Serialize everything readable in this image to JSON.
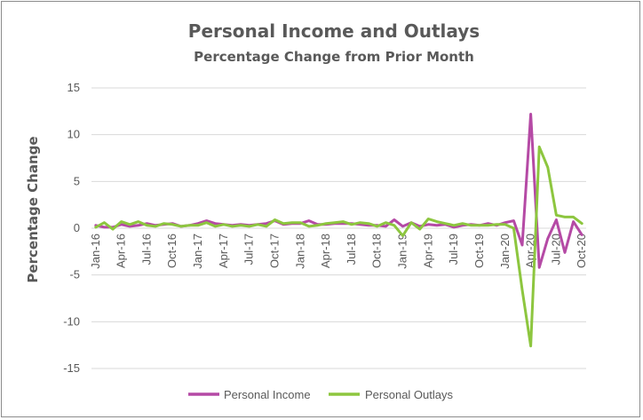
{
  "chart_data": {
    "type": "line",
    "title": "Personal Income and Outlays",
    "subtitle": "Percentage Change from Prior Month",
    "xlabel": "",
    "ylabel": "Percentage Change",
    "ylim": [
      -15,
      15
    ],
    "yticks": [
      15,
      10,
      5,
      0,
      -5,
      -10,
      -15
    ],
    "grid": true,
    "legend": "bottom",
    "x": [
      "Jan-16",
      "Feb-16",
      "Mar-16",
      "Apr-16",
      "May-16",
      "Jun-16",
      "Jul-16",
      "Aug-16",
      "Sep-16",
      "Oct-16",
      "Nov-16",
      "Dec-16",
      "Jan-17",
      "Feb-17",
      "Mar-17",
      "Apr-17",
      "May-17",
      "Jun-17",
      "Jul-17",
      "Aug-17",
      "Sep-17",
      "Oct-17",
      "Nov-17",
      "Dec-17",
      "Jan-18",
      "Feb-18",
      "Mar-18",
      "Apr-18",
      "May-18",
      "Jun-18",
      "Jul-18",
      "Aug-18",
      "Sep-18",
      "Oct-18",
      "Nov-18",
      "Dec-18",
      "Jan-19",
      "Feb-19",
      "Mar-19",
      "Apr-19",
      "May-19",
      "Jun-19",
      "Jul-19",
      "Aug-19",
      "Sep-19",
      "Oct-19",
      "Nov-19",
      "Dec-19",
      "Jan-20",
      "Feb-20",
      "Mar-20",
      "Apr-20",
      "May-20",
      "Jun-20",
      "Jul-20",
      "Aug-20",
      "Sep-20",
      "Oct-20"
    ],
    "xtick_labels": [
      "Jan-16",
      "Apr-16",
      "Jul-16",
      "Oct-16",
      "Jan-17",
      "Apr-17",
      "Jul-17",
      "Oct-17",
      "Jan-18",
      "Apr-18",
      "Jul-18",
      "Oct-18",
      "Jan-19",
      "Apr-19",
      "Jul-19",
      "Oct-19",
      "Jan-20",
      "Apr-20",
      "Jul-20",
      "Oct-20"
    ],
    "series": [
      {
        "name": "Personal Income",
        "color": "#b54aa5",
        "values": [
          0.3,
          0.1,
          0.1,
          0.4,
          0.2,
          0.3,
          0.5,
          0.3,
          0.4,
          0.5,
          0.2,
          0.3,
          0.5,
          0.8,
          0.5,
          0.4,
          0.3,
          0.4,
          0.3,
          0.4,
          0.5,
          0.8,
          0.4,
          0.5,
          0.5,
          0.8,
          0.4,
          0.4,
          0.5,
          0.5,
          0.5,
          0.4,
          0.3,
          0.3,
          0.2,
          0.9,
          0.2,
          0.6,
          0.2,
          0.4,
          0.3,
          0.4,
          0.1,
          0.3,
          0.4,
          0.3,
          0.5,
          0.3,
          0.6,
          0.8,
          -1.8,
          12.2,
          -4.2,
          -1.1,
          0.9,
          -2.6,
          0.7,
          -0.7
        ]
      },
      {
        "name": "Personal Outlays",
        "color": "#8dc63f",
        "values": [
          0.1,
          0.6,
          -0.1,
          0.7,
          0.4,
          0.7,
          0.3,
          0.2,
          0.5,
          0.4,
          0.2,
          0.3,
          0.3,
          0.6,
          0.2,
          0.4,
          0.2,
          0.3,
          0.2,
          0.4,
          0.2,
          0.9,
          0.5,
          0.6,
          0.6,
          0.2,
          0.3,
          0.5,
          0.6,
          0.7,
          0.4,
          0.6,
          0.5,
          0.2,
          0.6,
          0.3,
          -0.8,
          0.6,
          -0.1,
          1.0,
          0.7,
          0.5,
          0.3,
          0.5,
          0.3,
          0.3,
          0.3,
          0.4,
          0.4,
          0.0,
          -6.6,
          -12.6,
          8.7,
          6.5,
          1.4,
          1.2,
          1.2,
          0.5
        ]
      }
    ]
  }
}
